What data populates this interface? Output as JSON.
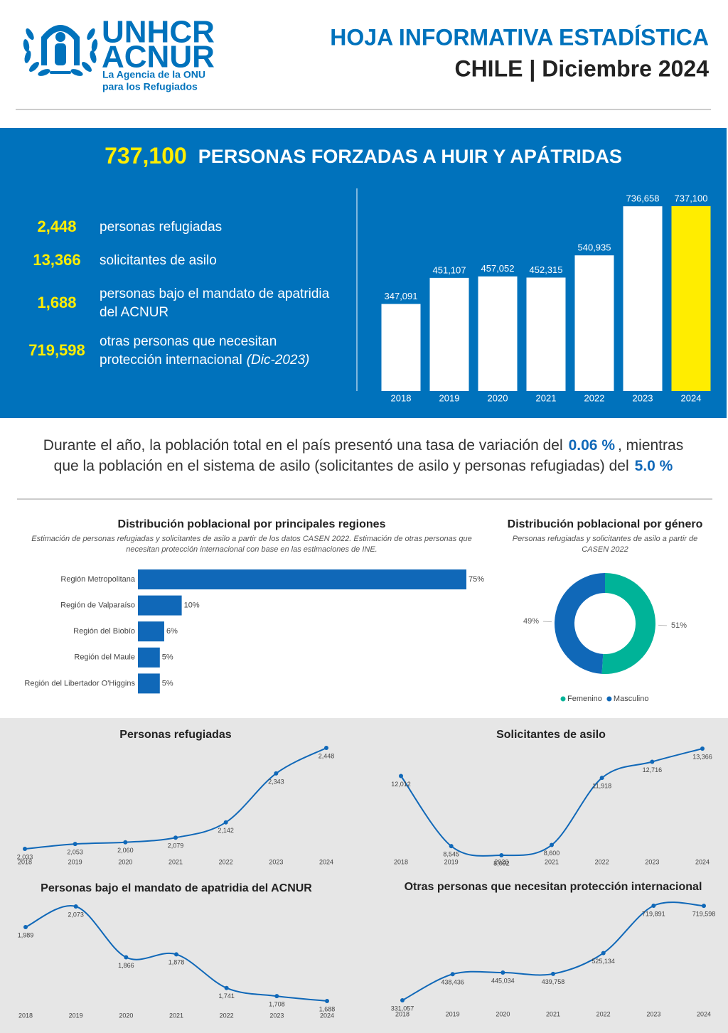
{
  "header": {
    "logo": {
      "name1": "UNHCR",
      "name2": "ACNUR",
      "tagline": [
        "La Agencia de la ONU",
        "para los Refugiados"
      ]
    },
    "title": "HOJA INFORMATIVA ESTADÍSTICA",
    "subtitle": "CHILE | Diciembre 2024"
  },
  "headline": {
    "total": "737,100",
    "text": "PERSONAS FORZADAS A HUIR Y APÁTRIDAS"
  },
  "summary": [
    {
      "value": "2,448",
      "label": [
        "personas refugiadas"
      ]
    },
    {
      "value": "13,366",
      "label": [
        "solicitantes de asilo"
      ]
    },
    {
      "value": "1,688",
      "label": [
        "personas bajo el mandato de apatridia",
        "del ACNUR"
      ]
    },
    {
      "value": "719,598",
      "label": [
        "otras personas que necesitan",
        "protección internacional"
      ],
      "note": "(Dic-2023)"
    }
  ],
  "statement": {
    "line1": {
      "before": "Durante el año, la población total en el país presentó una tasa de variación del",
      "value": "0.06 %",
      "after": ", mientras"
    },
    "line2": {
      "before": "que la población en el sistema de asilo (solicitantes de asilo y personas refugiadas) del",
      "value": "5.0 %"
    }
  },
  "chart_data": [
    {
      "type": "bar",
      "categories": [
        "2018",
        "2019",
        "2020",
        "2021",
        "2022",
        "2023",
        "2024"
      ],
      "values": [
        347091,
        451107,
        457052,
        452315,
        540935,
        736658,
        737100
      ],
      "value_labels": [
        "347,091",
        "451,107",
        "457,052",
        "452,315",
        "540,935",
        "736,658",
        "737,100"
      ],
      "colors": [
        "#ffffff",
        "#ffffff",
        "#ffffff",
        "#ffffff",
        "#ffffff",
        "#ffffff",
        "#ffed00"
      ]
    },
    {
      "type": "hbar",
      "title": "Distribución poblacional por principales regiones",
      "subtitle": [
        "Estimación de personas refugiadas y solicitantes de asilo a partir de los datos CASEN 2022. Estimación de otras personas que",
        "necesitan protección internacional con base en las estimaciones de INE."
      ],
      "categories": [
        "Región Metropolitana",
        "Región de Valparaíso",
        "Región del Biobío",
        "Región del Maule",
        "Región del Libertador O'Higgins"
      ],
      "values": [
        75,
        10,
        6,
        5,
        5
      ],
      "value_labels": [
        "75%",
        "10%",
        "6%",
        "5%",
        "5%"
      ],
      "color": "#1068b8"
    },
    {
      "type": "donut",
      "title": "Distribución poblacional por género",
      "subtitle": [
        "Personas refugiadas y solicitantes de asilo a partir de",
        "CASEN 2022"
      ],
      "categories": [
        "Femenino",
        "Masculino"
      ],
      "values": [
        51,
        49
      ],
      "value_labels": [
        "51%",
        "49%"
      ],
      "colors": [
        "#00b398",
        "#1068b8"
      ]
    },
    {
      "type": "line",
      "title": "Personas refugiadas",
      "categories": [
        "2018",
        "2019",
        "2020",
        "2021",
        "2022",
        "2023",
        "2024"
      ],
      "values": [
        2033,
        2053,
        2060,
        2079,
        2142,
        2343,
        2448
      ],
      "value_labels": [
        "2,033",
        "2,053",
        "2,060",
        "2,079",
        "2,142",
        "2,343",
        "2,448"
      ],
      "color": "#1068b8"
    },
    {
      "type": "line",
      "title": "Solicitantes de asilo",
      "categories": [
        "2018",
        "2019",
        "2020",
        "2021",
        "2022",
        "2023",
        "2024"
      ],
      "values": [
        12012,
        8545,
        8092,
        8600,
        11918,
        12716,
        13366
      ],
      "value_labels": [
        "12,012",
        "8,545",
        "8,092",
        "8,600",
        "11,918",
        "12,716",
        "13,366"
      ],
      "color": "#1068b8"
    },
    {
      "type": "line",
      "title": "Personas bajo el mandato de apatridia del ACNUR",
      "categories": [
        "2018",
        "2019",
        "2020",
        "2021",
        "2022",
        "2023",
        "2024"
      ],
      "values": [
        1989,
        2073,
        1866,
        1878,
        1741,
        1708,
        1688
      ],
      "value_labels": [
        "1,989",
        "2,073",
        "1,866",
        "1,878",
        "1,741",
        "1,708",
        "1,688"
      ],
      "color": "#1068b8"
    },
    {
      "type": "line",
      "title": "Otras personas que necesitan protección internacional",
      "categories": [
        "2018",
        "2019",
        "2020",
        "2021",
        "2022",
        "2023",
        "2024"
      ],
      "values": [
        331057,
        438436,
        445034,
        439758,
        525134,
        719891,
        719598
      ],
      "value_labels": [
        "331,057",
        "438,436",
        "445,034",
        "439,758",
        "525,134",
        "719,891",
        "719,598"
      ],
      "color": "#1068b8"
    }
  ]
}
